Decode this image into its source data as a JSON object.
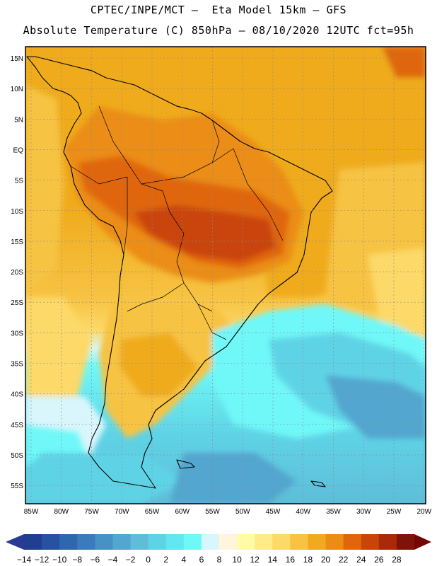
{
  "header": {
    "line1": "CPTEC/INPE/MCT –  Eta Model 15km – GFS",
    "line2": "Absolute Temperature (C) 850hPa – 08/10/2020 12UTC fct=95h"
  },
  "map": {
    "lat_labels": [
      "15N",
      "10N",
      "5N",
      "EQ",
      "5S",
      "10S",
      "15S",
      "20S",
      "25S",
      "30S",
      "35S",
      "40S",
      "45S",
      "50S",
      "55S"
    ],
    "lon_labels": [
      "85W",
      "80W",
      "75W",
      "70W",
      "65W",
      "60W",
      "55W",
      "50W",
      "45W",
      "40W",
      "35W",
      "30W",
      "25W",
      "20W"
    ]
  },
  "colorbar": {
    "labels": [
      "-14",
      "-12",
      "-10",
      "-8",
      "-6",
      "-4",
      "-2",
      "0",
      "2",
      "4",
      "6",
      "8",
      "10",
      "12",
      "14",
      "16",
      "18",
      "20",
      "22",
      "24",
      "26",
      "28"
    ],
    "colors": [
      "#1f3f8f",
      "#27529f",
      "#3066ad",
      "#3a7bbb",
      "#4691c6",
      "#52a6cf",
      "#5fbdd9",
      "#5fd3e6",
      "#63e6ef",
      "#6ff8f8",
      "#d8f6fb",
      "#fff5dd",
      "#fffca5",
      "#ffeb8a",
      "#fcd968",
      "#f7c343",
      "#efab1c",
      "#eb8d12",
      "#e0660c",
      "#c94408",
      "#a92a08",
      "#7e1408"
    ],
    "under_color": "#283a93",
    "over_color": "#740404"
  }
}
